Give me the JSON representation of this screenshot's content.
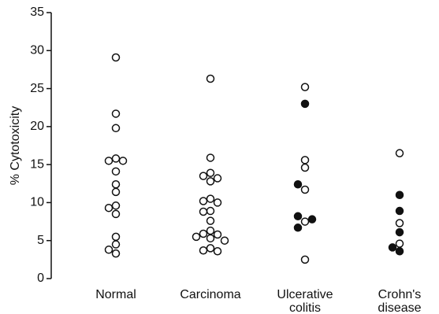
{
  "chart_data": {
    "type": "dot",
    "ylabel": "% Cytotoxicity",
    "categories": [
      [
        "Normal"
      ],
      [
        "Carcinoma"
      ],
      [
        "Ulcerative",
        "colitis"
      ],
      [
        "Crohn's",
        "disease"
      ]
    ],
    "ylim": [
      0,
      35
    ],
    "yticks": [
      0,
      5,
      10,
      15,
      20,
      25,
      30,
      35
    ],
    "color": "#111111",
    "series": [
      {
        "marker": "open",
        "values": [
          [
            29.1,
            21.7,
            19.8,
            15.8,
            15.5,
            15.5,
            14.1,
            12.4,
            11.4,
            9.6,
            9.3,
            8.5,
            5.5,
            4.5,
            3.8,
            3.3
          ],
          [
            26.3,
            15.9,
            13.9,
            13.5,
            13.2,
            12.8,
            10.5,
            10.2,
            10.0,
            8.9,
            8.8,
            7.6,
            6.3,
            5.9,
            5.8,
            5.5,
            5.3,
            5.0,
            4.0,
            3.7,
            3.6
          ],
          [
            25.2,
            15.6,
            14.6,
            11.7,
            7.5,
            2.5
          ],
          [
            16.5,
            7.3,
            4.6
          ]
        ]
      },
      {
        "marker": "filled",
        "values": [
          [],
          [],
          [
            23.0,
            12.4,
            8.2,
            7.8,
            6.7
          ],
          [
            11.0,
            8.9,
            6.1,
            4.1,
            3.6
          ]
        ]
      }
    ]
  }
}
